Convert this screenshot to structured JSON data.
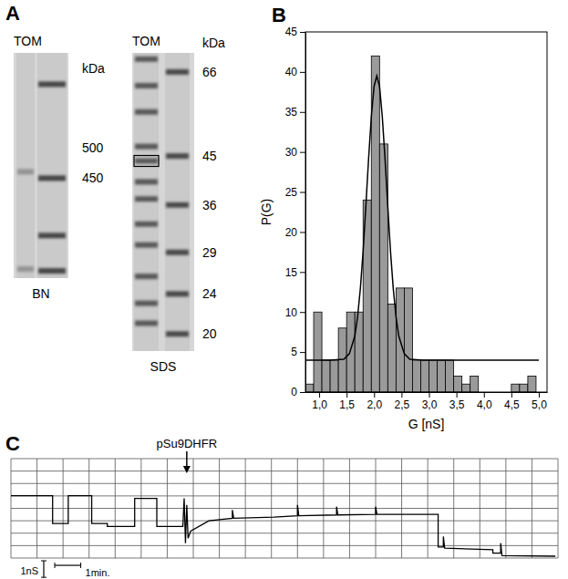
{
  "chart_data": [
    {
      "type": "gel",
      "panel": "A",
      "title": "TOM",
      "xlabel": "BN",
      "ylabel": "kDa",
      "log": "y",
      "ylim": [
        690,
        320
      ],
      "yticks": [
        500,
        450
      ],
      "lanes": [
        [
          460,
          330
        ],
        [
          620,
          450,
          370,
          328
        ]
      ],
      "color": "#2e2e2e"
    },
    {
      "type": "gel",
      "title": "TOM",
      "xlabel": "SDS",
      "ylabel": "kDa",
      "log": "y",
      "ylim": [
        72,
        18.5
      ],
      "yticks": [
        66,
        45,
        36,
        29,
        24,
        20
      ],
      "lanes": [
        [
          70,
          62,
          55,
          47,
          44,
          40,
          37,
          33,
          30,
          26,
          23,
          21
        ],
        [
          66,
          45,
          36,
          29,
          24,
          20
        ]
      ],
      "highlight": 44,
      "color": "#333333"
    },
    {
      "type": "histogram",
      "panel": "B",
      "xlabel": "G [nS]",
      "ylabel": "P(G)",
      "bins": [
        0.75,
        0.9,
        1.05,
        1.2,
        1.35,
        1.5,
        1.65,
        1.8,
        1.95,
        2.1,
        2.25,
        2.4,
        2.55,
        2.7,
        2.85,
        3.0,
        3.15,
        3.3,
        3.45,
        3.6,
        3.75,
        3.9,
        4.05,
        4.2,
        4.35,
        4.5,
        4.65,
        4.8,
        4.95
      ],
      "values": [
        1,
        10,
        4,
        4,
        8,
        10,
        10,
        24,
        42,
        31,
        11,
        13,
        13,
        4,
        4,
        4,
        4,
        4,
        2,
        1,
        2,
        0,
        0,
        0,
        0,
        1,
        1,
        2
      ],
      "color": "#9a9a9a",
      "fit": {
        "type": "line",
        "color": "#000000",
        "x": [
          0.75,
          1.2,
          1.45,
          1.55,
          1.65,
          1.7,
          1.75,
          1.8,
          1.85,
          1.9,
          1.95,
          2.0,
          2.05,
          2.1,
          2.15,
          2.2,
          2.25,
          2.3,
          2.35,
          2.4,
          2.45,
          2.55,
          2.65,
          2.9,
          5.0
        ],
        "values": [
          4,
          4,
          4.1,
          4.8,
          7.0,
          9.4,
          12.9,
          17.5,
          23.2,
          29.1,
          34.4,
          38.2,
          39.5,
          38.2,
          34.4,
          29.1,
          23.2,
          17.5,
          12.9,
          9.4,
          7.0,
          4.8,
          4.1,
          4,
          4
        ]
      },
      "xlim": [
        0.75,
        5.15
      ],
      "ylim": [
        0,
        45
      ],
      "xticks": [
        {
          "value": 1,
          "label": "1,0"
        },
        {
          "value": 1.5,
          "label": "1,5"
        },
        {
          "value": 2,
          "label": "2,0"
        },
        {
          "value": 2.5,
          "label": "2,5"
        },
        {
          "value": 3,
          "label": "3,0"
        },
        {
          "value": 3.5,
          "label": "3,5"
        },
        {
          "value": 4,
          "label": "4,0"
        },
        {
          "value": 4.5,
          "label": "4,5"
        },
        {
          "value": 5,
          "label": "5,0"
        }
      ],
      "yticks": [
        0,
        5,
        10,
        15,
        20,
        25,
        30,
        35,
        40,
        45
      ]
    },
    {
      "type": "line",
      "panel": "C",
      "color": "#000000",
      "x": [
        0,
        1.6,
        1.6,
        2.2,
        2.2,
        3.1,
        3.1,
        3.7,
        3.7,
        4.75,
        4.75,
        5.6,
        5.6,
        6.6,
        6.65,
        6.7,
        6.75,
        6.8,
        6.9,
        7.6,
        8.5,
        8.5,
        8.55,
        10.1,
        11,
        11,
        11.05,
        12.5,
        12.5,
        12.55,
        14,
        14,
        14.05,
        16.4,
        16.4,
        16.6,
        16.6,
        16.65,
        18.5,
        18.5,
        18.8,
        18.8,
        18.85,
        20.9
      ],
      "values": [
        3.76,
        3.76,
        2.08,
        2.08,
        3.76,
        3.76,
        2.08,
        2.08,
        1.91,
        1.91,
        3.6,
        3.6,
        1.91,
        1.91,
        3.6,
        0.9,
        3.2,
        1.2,
        1.63,
        2.25,
        2.4,
        2.9,
        2.4,
        2.47,
        2.55,
        3.2,
        2.55,
        2.6,
        3.1,
        2.6,
        2.64,
        3.1,
        2.64,
        2.64,
        0.67,
        0.67,
        1.3,
        0.6,
        0.5,
        0.3,
        0.3,
        0.9,
        0.15,
        0.11
      ],
      "xlim": [
        0,
        21
      ],
      "ylim": [
        0,
        6
      ],
      "xticks": [
        0,
        1,
        2,
        3,
        4,
        5,
        6,
        7,
        8,
        9,
        10,
        11,
        12,
        13,
        14,
        15,
        16,
        17,
        18,
        19,
        20,
        21
      ],
      "yticks": [
        0,
        0.75,
        1.5,
        2.25,
        3,
        3.75,
        4.5,
        5.25,
        6
      ],
      "grid": true,
      "tick_labels": false,
      "annotations": [
        {
          "text": "pSu9DHFR",
          "x": 6.75
        }
      ],
      "y_scale_bar": {
        "value": 1,
        "label": "1nS"
      },
      "x_scale_bar": {
        "value": 1,
        "label": "1min."
      }
    }
  ]
}
